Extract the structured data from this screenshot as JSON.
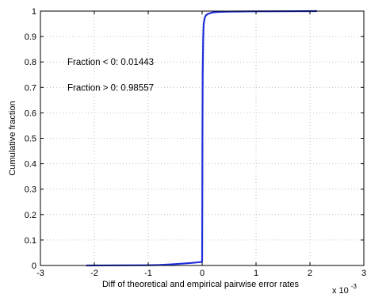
{
  "chart_data": {
    "type": "line",
    "xlabel": "Diff of theoretical and empirical pairwise error rates",
    "ylabel": "Cumulative fraction",
    "x_multiplier_label": "x 10",
    "x_multiplier_exponent": "-3",
    "xlim": [
      -3,
      3
    ],
    "ylim": [
      0,
      1
    ],
    "xticks": [
      -3,
      -2,
      -1,
      0,
      1,
      2,
      3
    ],
    "yticks": [
      0,
      0.1,
      0.2,
      0.3,
      0.4,
      0.5,
      0.6,
      0.7,
      0.8,
      0.9,
      1
    ],
    "grid": true,
    "series": [
      {
        "color": "#1f2fdc",
        "x": [
          -2.15,
          -1.5,
          -1.0,
          -0.8,
          -0.6,
          -0.4,
          -0.2,
          -0.05,
          0.0,
          0.003,
          0.006,
          0.01,
          0.02,
          0.03,
          0.045,
          0.06,
          0.08,
          0.1,
          0.15,
          0.2,
          0.3,
          0.5,
          1.0,
          1.5,
          2.13
        ],
        "y": [
          0.0,
          0.0005,
          0.001,
          0.002,
          0.004,
          0.007,
          0.01,
          0.013,
          0.01443,
          0.2,
          0.5,
          0.75,
          0.9,
          0.95,
          0.97,
          0.98,
          0.985,
          0.988,
          0.992,
          0.995,
          0.997,
          0.998,
          0.999,
          0.9995,
          1.0
        ]
      }
    ],
    "annotations": [
      {
        "text": "Fraction < 0: 0.01443",
        "x": -2.5,
        "y": 0.8
      },
      {
        "text": "Fraction > 0: 0.98557",
        "x": -2.5,
        "y": 0.7
      }
    ]
  }
}
